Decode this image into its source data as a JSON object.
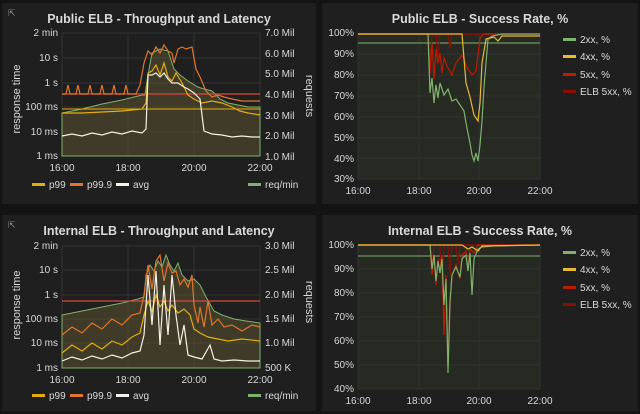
{
  "panels": {
    "public_tl": {
      "title": "Public ELB - Throughput and Latency",
      "y_left_label": "response time",
      "y_right_label": "requests",
      "y_left_ticks": [
        "2 min",
        "10 s",
        "1 s",
        "100 ms",
        "10 ms",
        "1 ms"
      ],
      "y_right_ticks": [
        "7.0 Mil",
        "6.0 Mil",
        "5.0 Mil",
        "4.0 Mil",
        "3.0 Mil",
        "2.0 Mil",
        "1.0 Mil"
      ],
      "x_ticks": [
        "16:00",
        "18:00",
        "20:00",
        "22:00"
      ],
      "legend": [
        {
          "label": "p99",
          "color": "#e5ac0e"
        },
        {
          "label": "p99.9",
          "color": "#e0752d"
        },
        {
          "label": "avg",
          "color": "#f4f1e6"
        },
        {
          "label": "req/min",
          "color": "#7eb26d"
        }
      ]
    },
    "public_sr": {
      "title": "Public ELB - Success Rate, %",
      "y_ticks": [
        "100%",
        "90%",
        "80%",
        "70%",
        "60%",
        "50%",
        "40%",
        "30%"
      ],
      "x_ticks": [
        "16:00",
        "18:00",
        "20:00",
        "22:00"
      ],
      "legend": [
        {
          "label": "2xx, %",
          "color": "#7eb26d"
        },
        {
          "label": "4xx, %",
          "color": "#eab839"
        },
        {
          "label": "5xx, %",
          "color": "#bf1b00"
        },
        {
          "label": "ELB 5xx, %",
          "color": "#890f02"
        }
      ]
    },
    "internal_tl": {
      "title": "Internal ELB - Throughput and Latency",
      "y_left_label": "response time",
      "y_right_label": "requests",
      "y_left_ticks": [
        "2 min",
        "10 s",
        "1 s",
        "100 ms",
        "10 ms",
        "1 ms"
      ],
      "y_right_ticks": [
        "3.0 Mil",
        "2.5 Mil",
        "2.0 Mil",
        "1.5 Mil",
        "1.0 Mil",
        "500 K"
      ],
      "x_ticks": [
        "16:00",
        "18:00",
        "20:00",
        "22:00"
      ],
      "legend": [
        {
          "label": "p99",
          "color": "#e5ac0e"
        },
        {
          "label": "p99.9",
          "color": "#e0752d"
        },
        {
          "label": "avg",
          "color": "#f4f1e6"
        },
        {
          "label": "req/min",
          "color": "#7eb26d"
        }
      ]
    },
    "internal_sr": {
      "title": "Internal ELB - Success Rate, %",
      "y_ticks": [
        "100%",
        "90%",
        "80%",
        "70%",
        "60%",
        "50%",
        "40%"
      ],
      "x_ticks": [
        "16:00",
        "18:00",
        "20:00",
        "22:00"
      ],
      "legend": [
        {
          "label": "2xx, %",
          "color": "#7eb26d"
        },
        {
          "label": "4xx, %",
          "color": "#eab839"
        },
        {
          "label": "5xx, %",
          "color": "#bf1b00"
        },
        {
          "label": "ELB 5xx, %",
          "color": "#890f02"
        }
      ]
    }
  },
  "colors": {
    "background": "#141414",
    "panel": "#1f1f1f",
    "grid": "#333333",
    "threshold_red": "#d44a3a",
    "threshold_orange": "#e0752d",
    "area_fill": "#5a5230"
  }
}
